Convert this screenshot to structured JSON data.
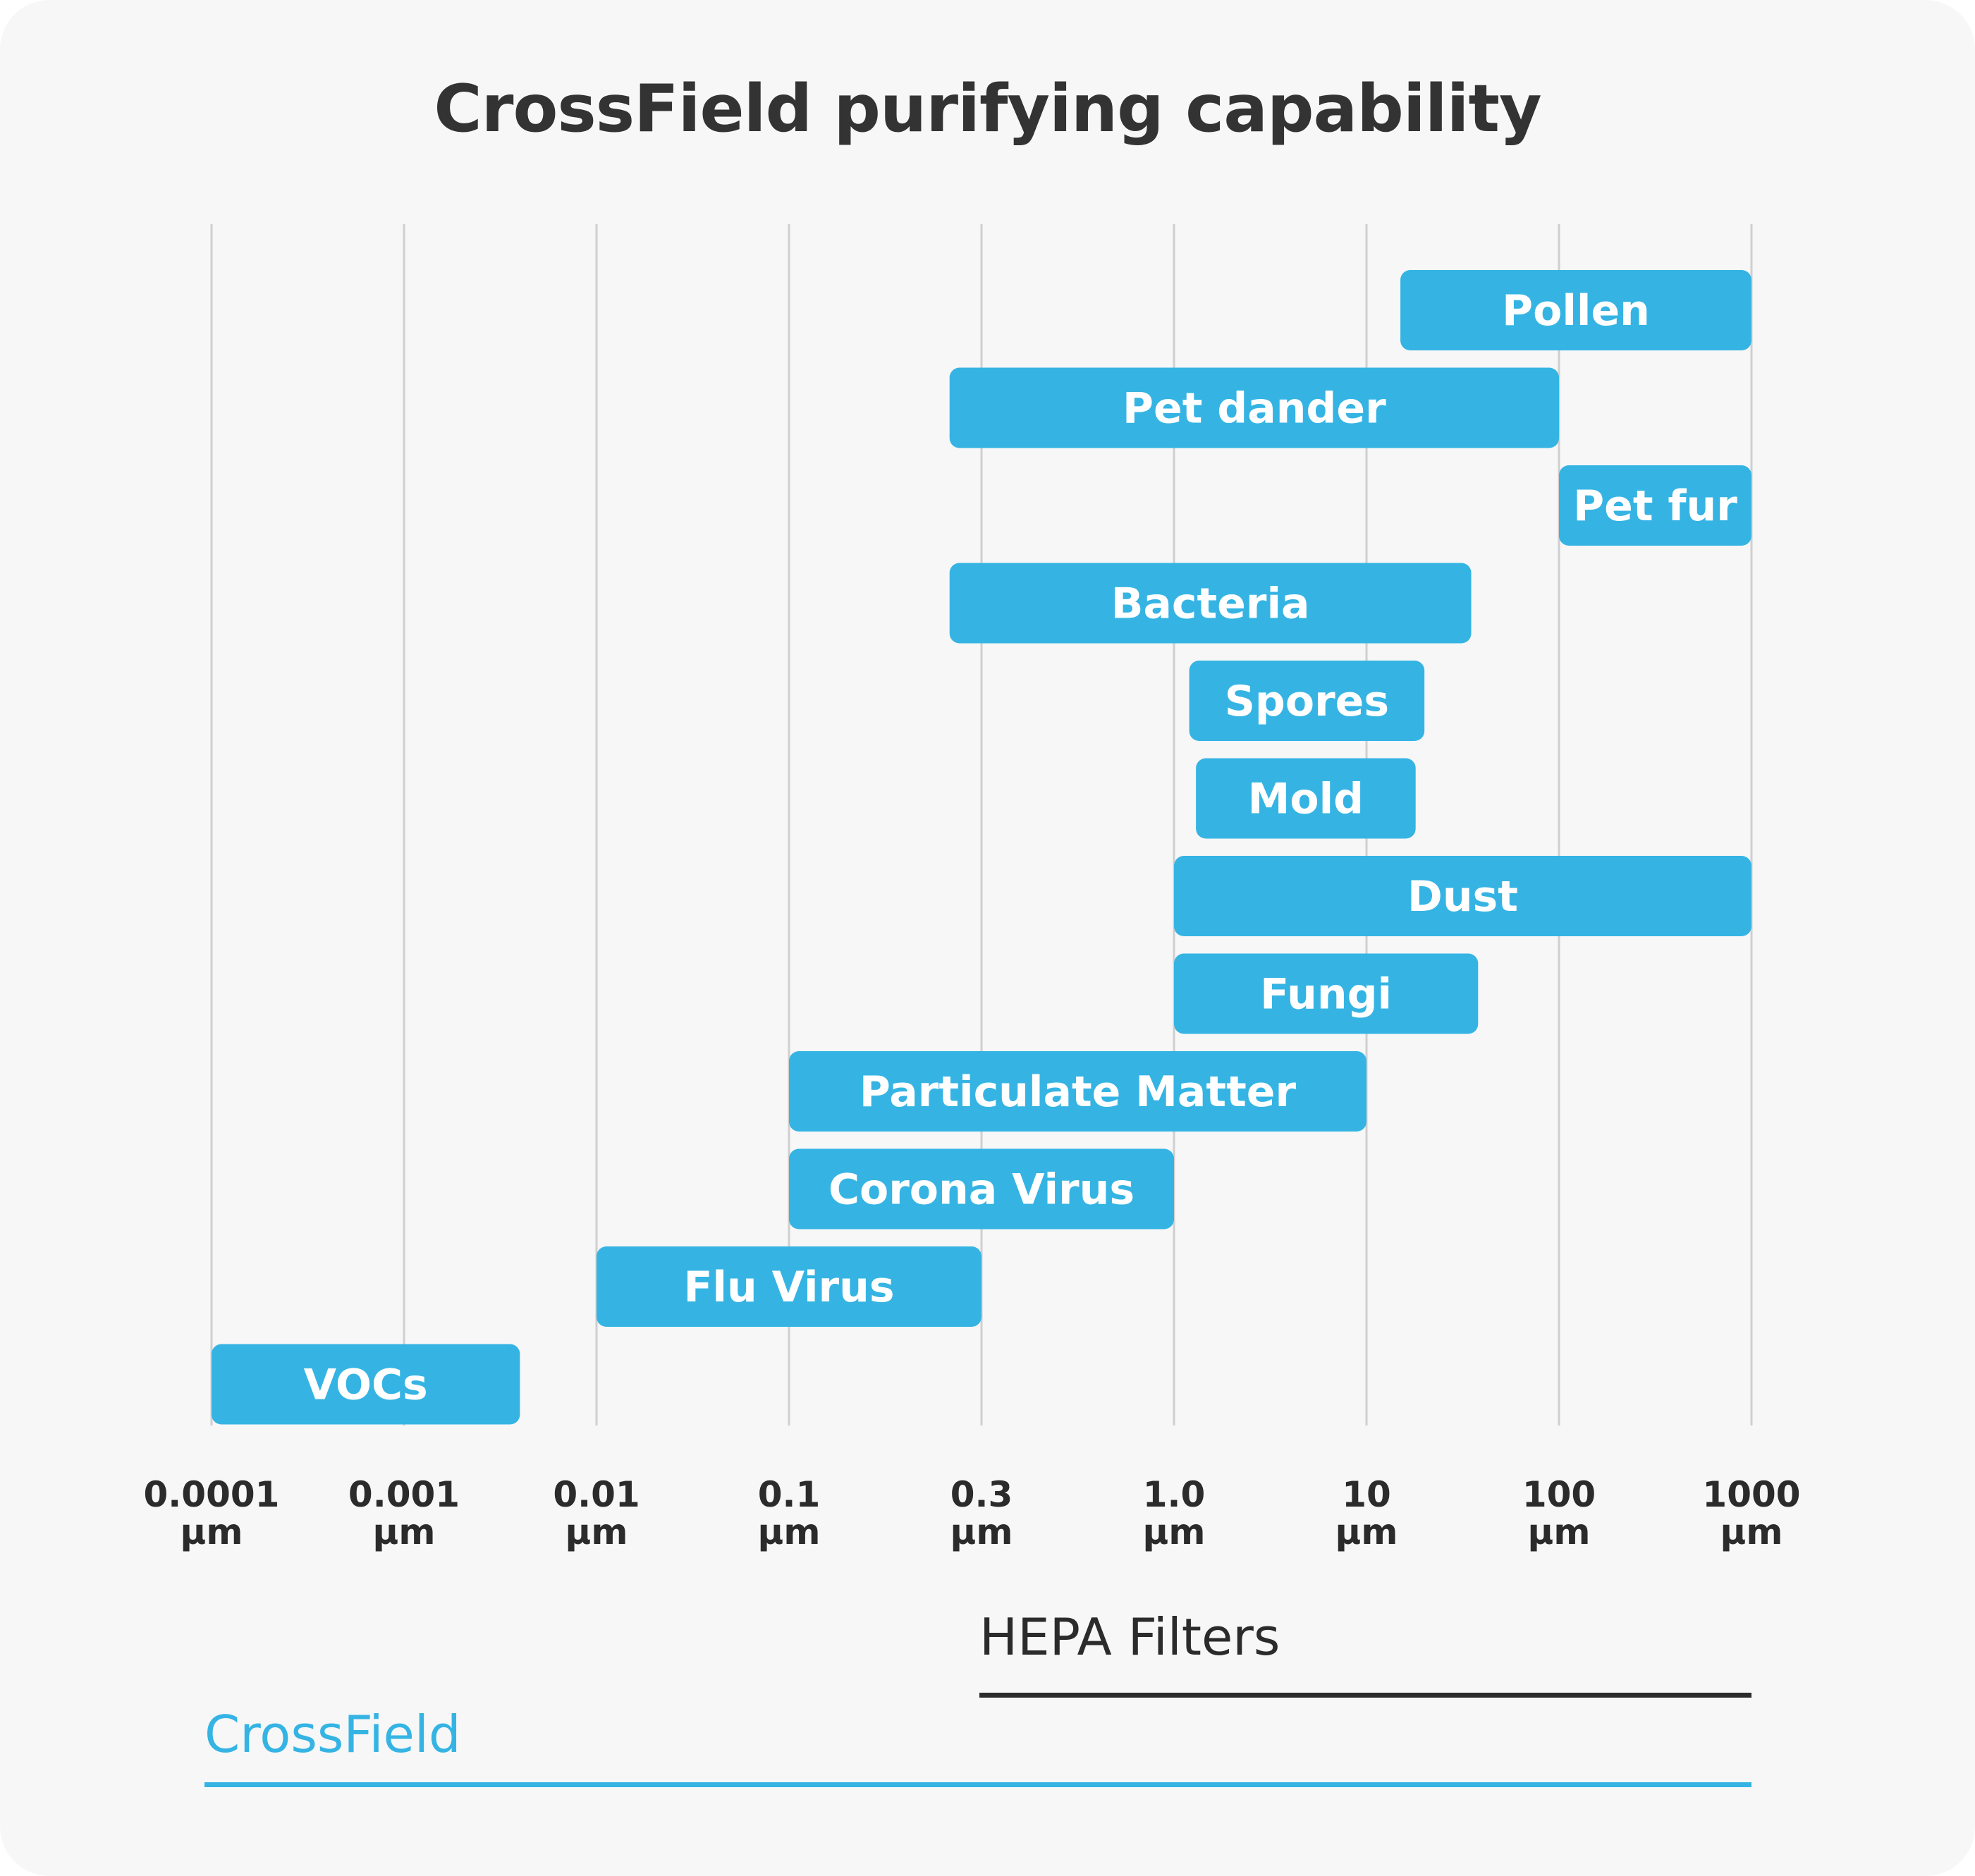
{
  "chart_data": {
    "type": "range-bar",
    "title": "CrossField purifying capability",
    "scale": "log",
    "xlim": [
      0.0001,
      1000
    ],
    "ticks": [
      {
        "value": 0.0001,
        "label": "0.0001",
        "unit": "μm"
      },
      {
        "value": 0.001,
        "label": "0.001",
        "unit": "μm"
      },
      {
        "value": 0.01,
        "label": "0.01",
        "unit": "μm"
      },
      {
        "value": 0.1,
        "label": "0.1",
        "unit": "μm"
      },
      {
        "value": 0.3,
        "label": "0.3",
        "unit": "μm"
      },
      {
        "value": 1.0,
        "label": "1.0",
        "unit": "μm"
      },
      {
        "value": 10,
        "label": "10",
        "unit": "μm"
      },
      {
        "value": 100,
        "label": "100",
        "unit": "μm"
      },
      {
        "value": 1000,
        "label": "1000",
        "unit": "μm"
      }
    ],
    "bars": [
      {
        "name": "Pollen",
        "from": 15,
        "to": 1000
      },
      {
        "name": "Pet dander",
        "from": 0.25,
        "to": 100
      },
      {
        "name": "Pet fur",
        "from": 100,
        "to": 1000
      },
      {
        "name": "Bacteria",
        "from": 0.25,
        "to": 35
      },
      {
        "name": "Spores",
        "from": 1.2,
        "to": 20
      },
      {
        "name": "Mold",
        "from": 1.3,
        "to": 18
      },
      {
        "name": "Dust",
        "from": 1.0,
        "to": 1000
      },
      {
        "name": "Fungi",
        "from": 1.0,
        "to": 38
      },
      {
        "name": "Particulate Matter",
        "from": 0.1,
        "to": 10
      },
      {
        "name": "Corona Virus",
        "from": 0.1,
        "to": 1.0
      },
      {
        "name": "Flu Virus",
        "from": 0.01,
        "to": 0.3
      },
      {
        "name": "VOCs",
        "from": 0.0001,
        "to": 0.004
      }
    ],
    "ranges": [
      {
        "name": "HEPA Filters",
        "from": 0.3,
        "to": 1000,
        "color": "#2b2b2b"
      },
      {
        "name": "CrossField",
        "from": 0.0001,
        "to": 1000,
        "color": "#35b4e4"
      }
    ],
    "colors": {
      "bar": "#35b4e4",
      "grid": "#cfcfcf",
      "title": "#333333"
    }
  }
}
